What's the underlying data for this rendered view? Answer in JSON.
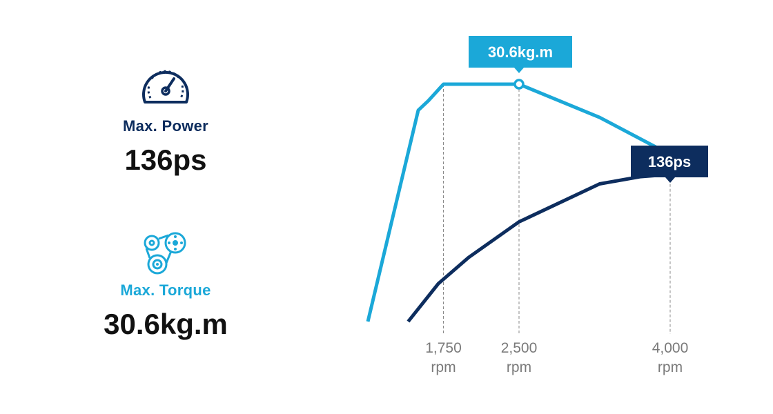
{
  "specs": {
    "power": {
      "label": "Max. Power",
      "value": "136ps",
      "icon": "speedometer-icon",
      "color": "#0d2d5e"
    },
    "torque": {
      "label": "Max. Torque",
      "value": "30.6kg.m",
      "icon": "gears-icon",
      "color": "#1ba8d8"
    }
  },
  "chart_data": {
    "type": "line",
    "xlabel": "",
    "ylabel": "",
    "x_unit": "rpm",
    "xlim": [
      1000,
      4000
    ],
    "ylim": [
      0,
      100
    ],
    "grid": false,
    "legend": "none",
    "ticks": [
      {
        "value": 1750,
        "label": "1,750",
        "unit": "rpm"
      },
      {
        "value": 2500,
        "label": "2,500",
        "unit": "rpm"
      },
      {
        "value": 4000,
        "label": "4,000",
        "unit": "rpm"
      }
    ],
    "series": [
      {
        "color": "#1ba8d8",
        "x": [
          1000,
          1500,
          1600,
          1750,
          2200,
          2500,
          3300,
          3970
        ],
        "y": [
          0,
          89,
          93,
          100,
          100,
          100,
          86,
          71
        ],
        "peak": {
          "x": 2500,
          "y": 100,
          "callout": "30.6kg.m"
        }
      },
      {
        "color": "#0d2d5e",
        "x": [
          1400,
          1700,
          2000,
          2500,
          3300,
          3700,
          4000
        ],
        "y": [
          0,
          16,
          27,
          42,
          58,
          61,
          62
        ],
        "peak": {
          "x": 4000,
          "y": 62,
          "callout": "136ps"
        }
      }
    ]
  }
}
